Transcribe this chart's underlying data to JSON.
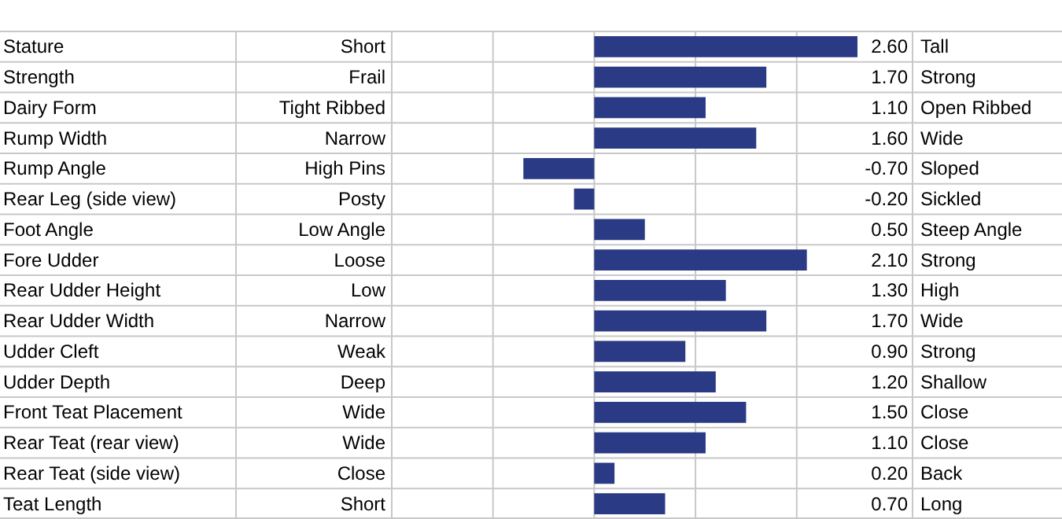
{
  "chart_data": {
    "type": "bar",
    "orientation": "horizontal",
    "categories": [
      "Stature",
      "Strength",
      "Dairy Form",
      "Rump Width",
      "Rump Angle",
      "Rear Leg (side view)",
      "Foot Angle",
      "Fore Udder",
      "Rear Udder Height",
      "Rear Udder Width",
      "Udder Cleft",
      "Udder Depth",
      "Front Teat Placement",
      "Rear Teat (rear view)",
      "Rear Teat (side view)",
      "Teat Length"
    ],
    "y2_categories": [
      "Tall",
      "Strong",
      "Open Ribbed",
      "Wide",
      "Sloped",
      "Sickled",
      "Steep Angle",
      "Strong",
      "High",
      "Wide",
      "Strong",
      "Shallow",
      "Close",
      "Close",
      "Back",
      "Long"
    ],
    "annotations": [
      "Short",
      "Frail",
      "Tight Ribbed",
      "Narrow",
      "High Pins",
      "Posty",
      "Low Angle",
      "Loose",
      "Low",
      "Narrow",
      "Weak",
      "Deep",
      "Wide",
      "Wide",
      "Close",
      "Short"
    ],
    "values": [
      2.6,
      1.7,
      1.1,
      1.6,
      -0.7,
      -0.2,
      0.5,
      2.1,
      1.3,
      1.7,
      0.9,
      1.2,
      1.5,
      1.1,
      0.2,
      0.7
    ],
    "value_labels": [
      "2.60",
      "1.70",
      "1.10",
      "1.60",
      "-0.70",
      "-0.20",
      "0.50",
      "2.10",
      "1.30",
      "1.70",
      "0.90",
      "1.20",
      "1.50",
      "1.10",
      "0.20",
      "0.70"
    ],
    "color": "#2b3a84",
    "xlim": [
      -2,
      2.6
    ],
    "xticks": [
      {
        "value": -2,
        "label": null
      },
      {
        "value": -1,
        "label": null
      },
      {
        "value": 0,
        "label": null
      },
      {
        "value": 1,
        "label": null
      },
      {
        "value": 2,
        "label": null
      }
    ],
    "grid": "x",
    "tick_labels": "y"
  }
}
